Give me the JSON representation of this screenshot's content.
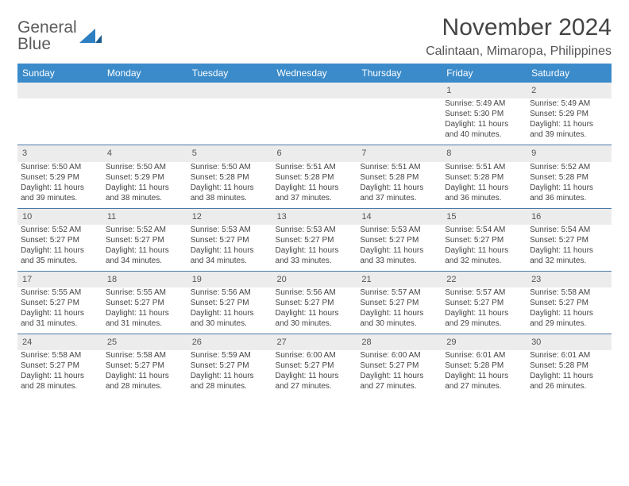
{
  "logo": {
    "line1": "General",
    "line2": "Blue"
  },
  "header": {
    "month_title": "November 2024",
    "location": "Calintaan, Mimaropa, Philippines"
  },
  "colors": {
    "header_bg": "#3b8bca",
    "header_text": "#ffffff",
    "daynum_bg": "#ececec",
    "cell_border": "#4a7aa8",
    "body_text": "#444444",
    "logo_gray": "#5a5a5a",
    "logo_blue": "#2d7fc1"
  },
  "weekdays": [
    "Sunday",
    "Monday",
    "Tuesday",
    "Wednesday",
    "Thursday",
    "Friday",
    "Saturday"
  ],
  "weeks": [
    [
      null,
      null,
      null,
      null,
      null,
      {
        "n": "1",
        "sunrise": "5:49 AM",
        "sunset": "5:30 PM",
        "daylight": "11 hours and 40 minutes."
      },
      {
        "n": "2",
        "sunrise": "5:49 AM",
        "sunset": "5:29 PM",
        "daylight": "11 hours and 39 minutes."
      }
    ],
    [
      {
        "n": "3",
        "sunrise": "5:50 AM",
        "sunset": "5:29 PM",
        "daylight": "11 hours and 39 minutes."
      },
      {
        "n": "4",
        "sunrise": "5:50 AM",
        "sunset": "5:29 PM",
        "daylight": "11 hours and 38 minutes."
      },
      {
        "n": "5",
        "sunrise": "5:50 AM",
        "sunset": "5:28 PM",
        "daylight": "11 hours and 38 minutes."
      },
      {
        "n": "6",
        "sunrise": "5:51 AM",
        "sunset": "5:28 PM",
        "daylight": "11 hours and 37 minutes."
      },
      {
        "n": "7",
        "sunrise": "5:51 AM",
        "sunset": "5:28 PM",
        "daylight": "11 hours and 37 minutes."
      },
      {
        "n": "8",
        "sunrise": "5:51 AM",
        "sunset": "5:28 PM",
        "daylight": "11 hours and 36 minutes."
      },
      {
        "n": "9",
        "sunrise": "5:52 AM",
        "sunset": "5:28 PM",
        "daylight": "11 hours and 36 minutes."
      }
    ],
    [
      {
        "n": "10",
        "sunrise": "5:52 AM",
        "sunset": "5:27 PM",
        "daylight": "11 hours and 35 minutes."
      },
      {
        "n": "11",
        "sunrise": "5:52 AM",
        "sunset": "5:27 PM",
        "daylight": "11 hours and 34 minutes."
      },
      {
        "n": "12",
        "sunrise": "5:53 AM",
        "sunset": "5:27 PM",
        "daylight": "11 hours and 34 minutes."
      },
      {
        "n": "13",
        "sunrise": "5:53 AM",
        "sunset": "5:27 PM",
        "daylight": "11 hours and 33 minutes."
      },
      {
        "n": "14",
        "sunrise": "5:53 AM",
        "sunset": "5:27 PM",
        "daylight": "11 hours and 33 minutes."
      },
      {
        "n": "15",
        "sunrise": "5:54 AM",
        "sunset": "5:27 PM",
        "daylight": "11 hours and 32 minutes."
      },
      {
        "n": "16",
        "sunrise": "5:54 AM",
        "sunset": "5:27 PM",
        "daylight": "11 hours and 32 minutes."
      }
    ],
    [
      {
        "n": "17",
        "sunrise": "5:55 AM",
        "sunset": "5:27 PM",
        "daylight": "11 hours and 31 minutes."
      },
      {
        "n": "18",
        "sunrise": "5:55 AM",
        "sunset": "5:27 PM",
        "daylight": "11 hours and 31 minutes."
      },
      {
        "n": "19",
        "sunrise": "5:56 AM",
        "sunset": "5:27 PM",
        "daylight": "11 hours and 30 minutes."
      },
      {
        "n": "20",
        "sunrise": "5:56 AM",
        "sunset": "5:27 PM",
        "daylight": "11 hours and 30 minutes."
      },
      {
        "n": "21",
        "sunrise": "5:57 AM",
        "sunset": "5:27 PM",
        "daylight": "11 hours and 30 minutes."
      },
      {
        "n": "22",
        "sunrise": "5:57 AM",
        "sunset": "5:27 PM",
        "daylight": "11 hours and 29 minutes."
      },
      {
        "n": "23",
        "sunrise": "5:58 AM",
        "sunset": "5:27 PM",
        "daylight": "11 hours and 29 minutes."
      }
    ],
    [
      {
        "n": "24",
        "sunrise": "5:58 AM",
        "sunset": "5:27 PM",
        "daylight": "11 hours and 28 minutes."
      },
      {
        "n": "25",
        "sunrise": "5:58 AM",
        "sunset": "5:27 PM",
        "daylight": "11 hours and 28 minutes."
      },
      {
        "n": "26",
        "sunrise": "5:59 AM",
        "sunset": "5:27 PM",
        "daylight": "11 hours and 28 minutes."
      },
      {
        "n": "27",
        "sunrise": "6:00 AM",
        "sunset": "5:27 PM",
        "daylight": "11 hours and 27 minutes."
      },
      {
        "n": "28",
        "sunrise": "6:00 AM",
        "sunset": "5:27 PM",
        "daylight": "11 hours and 27 minutes."
      },
      {
        "n": "29",
        "sunrise": "6:01 AM",
        "sunset": "5:28 PM",
        "daylight": "11 hours and 27 minutes."
      },
      {
        "n": "30",
        "sunrise": "6:01 AM",
        "sunset": "5:28 PM",
        "daylight": "11 hours and 26 minutes."
      }
    ]
  ],
  "labels": {
    "sunrise": "Sunrise:",
    "sunset": "Sunset:",
    "daylight": "Daylight:"
  }
}
